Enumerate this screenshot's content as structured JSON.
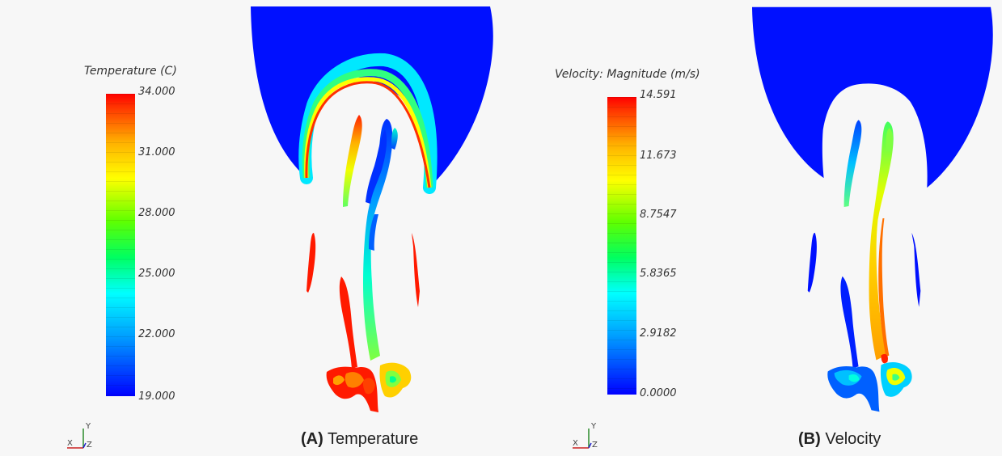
{
  "panels": [
    {
      "id": "temperature",
      "legend_title": "Temperature (C)",
      "ticks": [
        "34.000",
        "31.000",
        "28.000",
        "25.000",
        "22.000",
        "19.000"
      ],
      "caption_letter": "(A)",
      "caption_text": "Temperature"
    },
    {
      "id": "velocity",
      "legend_title": "Velocity: Magnitude (m/s)",
      "ticks": [
        "14.591",
        "11.673",
        "8.7547",
        "5.8365",
        "2.9182",
        "0.0000"
      ],
      "caption_letter": "(B)",
      "caption_text": "Velocity"
    }
  ],
  "axes_triad": {
    "x": "X",
    "y": "Y",
    "z": "Z"
  },
  "colors": {
    "blue": "#0010ff",
    "red": "#ff1a00",
    "yellow": "#f0ff00",
    "green": "#40ff40",
    "cyan": "#00e8ff"
  }
}
